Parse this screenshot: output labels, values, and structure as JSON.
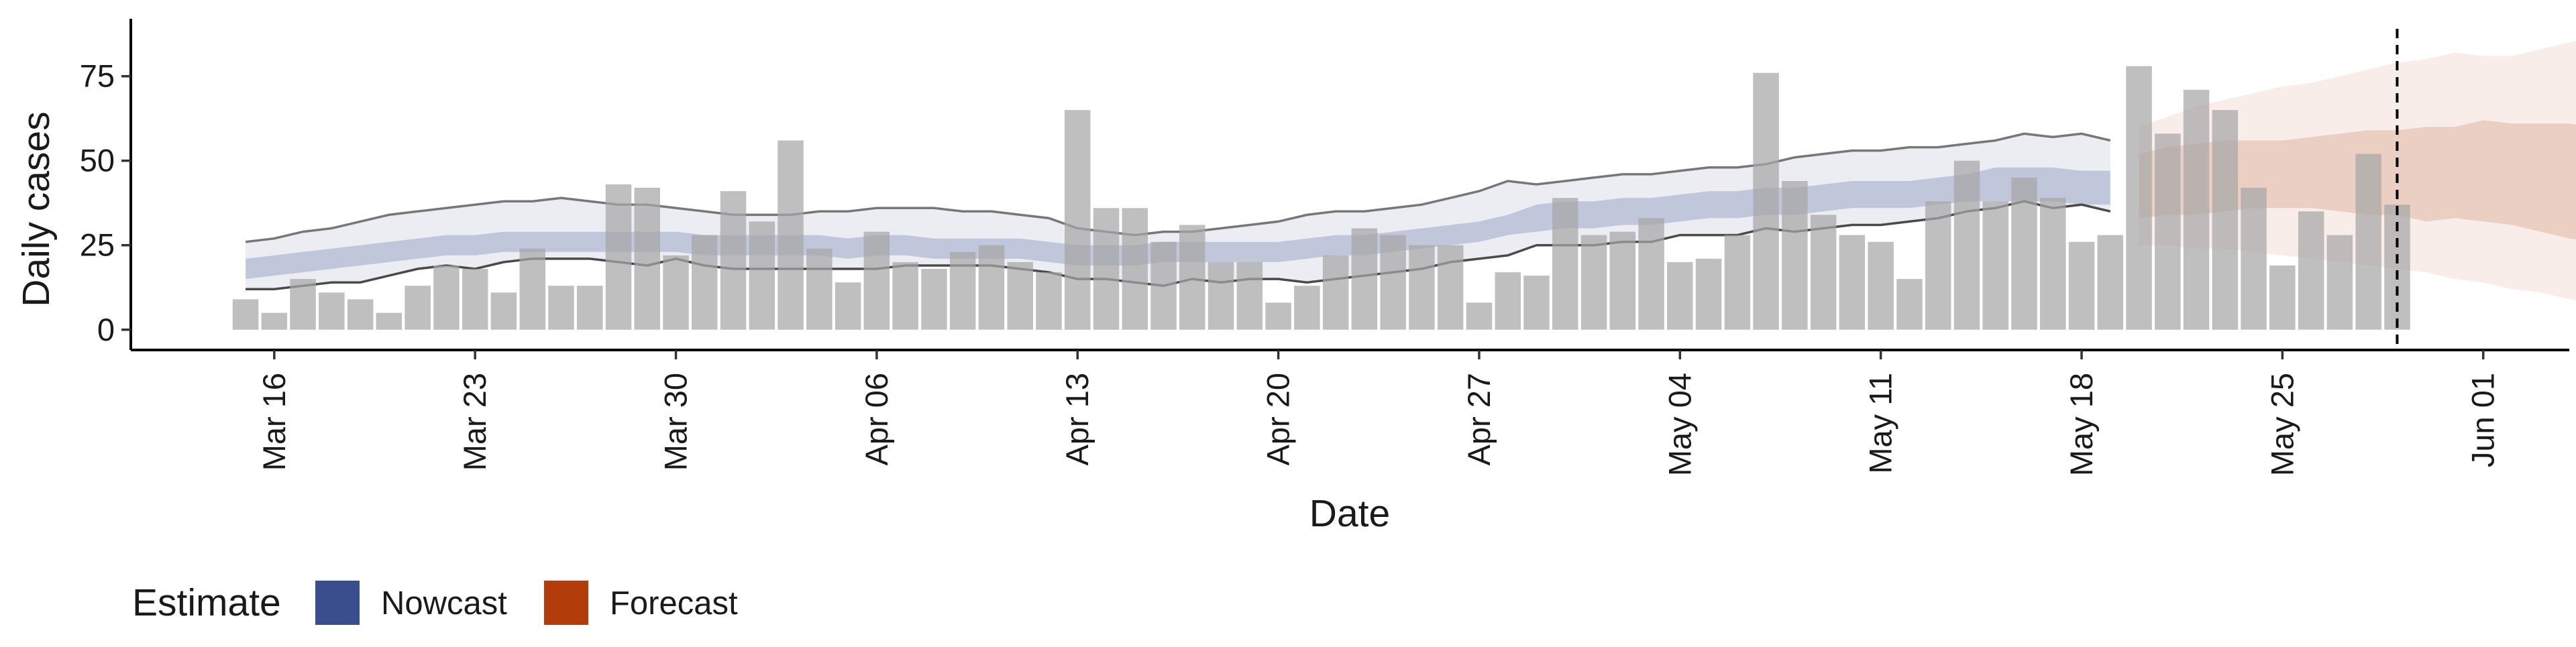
{
  "chart_data": {
    "type": "bar",
    "title": "",
    "xlabel": "Date",
    "ylabel": "Daily cases",
    "ylim": [
      -6,
      92
    ],
    "xlim": [
      "2020-03-11",
      "2020-06-04"
    ],
    "y_ticks": [
      0,
      25,
      50,
      75
    ],
    "x_ticks": [
      {
        "date": "2020-03-16",
        "label": "Mar 16"
      },
      {
        "date": "2020-03-23",
        "label": "Mar 23"
      },
      {
        "date": "2020-03-30",
        "label": "Mar 30"
      },
      {
        "date": "2020-04-06",
        "label": "Apr 06"
      },
      {
        "date": "2020-04-13",
        "label": "Apr 13"
      },
      {
        "date": "2020-04-20",
        "label": "Apr 20"
      },
      {
        "date": "2020-04-27",
        "label": "Apr 27"
      },
      {
        "date": "2020-05-04",
        "label": "May 04"
      },
      {
        "date": "2020-05-11",
        "label": "May 11"
      },
      {
        "date": "2020-05-18",
        "label": "May 18"
      },
      {
        "date": "2020-05-25",
        "label": "May 25"
      },
      {
        "date": "2020-06-01",
        "label": "Jun 01"
      }
    ],
    "grid": false,
    "reference_line": {
      "date": "2020-05-29",
      "style": "dashed"
    },
    "legend": {
      "title": "Estimate",
      "position": "bottom-left",
      "items": [
        {
          "label": "Nowcast",
          "color": "#3a4e8c"
        },
        {
          "label": "Forecast",
          "color": "#b33c0b"
        }
      ]
    },
    "colors": {
      "bars": "#a6a6a6",
      "nowcast": "#3a4e8c",
      "forecast": "#b33c0b",
      "outer_lines": "#555555"
    },
    "reported_cases": {
      "start_date": "2020-03-15",
      "values": [
        9,
        5,
        15,
        11,
        9,
        5,
        13,
        19,
        18,
        11,
        24,
        13,
        13,
        43,
        42,
        22,
        28,
        41,
        32,
        56,
        24,
        14,
        29,
        20,
        18,
        23,
        25,
        20,
        17,
        65,
        36,
        36,
        26,
        31,
        20,
        20,
        8,
        13,
        22,
        30,
        28,
        25,
        25,
        8,
        17,
        16,
        39,
        28,
        29,
        33,
        20,
        21,
        28,
        76,
        44,
        34,
        28,
        26,
        15,
        38,
        50,
        38,
        45,
        39,
        26,
        28,
        78,
        58,
        71,
        65,
        42,
        19,
        35,
        28,
        52,
        37
      ]
    },
    "nowcast": {
      "start_date": "2020-03-15",
      "median": [
        18,
        19,
        20,
        21,
        22,
        23,
        24,
        25,
        25,
        26,
        26,
        26,
        26,
        26,
        26,
        26,
        25,
        25,
        25,
        25,
        25,
        24,
        25,
        25,
        24,
        24,
        24,
        24,
        23,
        22,
        22,
        22,
        23,
        23,
        23,
        23,
        23,
        24,
        25,
        25,
        26,
        27,
        28,
        29,
        31,
        33,
        34,
        34,
        35,
        35,
        36,
        37,
        37,
        38,
        38,
        39,
        40,
        40,
        40,
        41,
        42,
        43,
        43,
        43,
        42,
        42
      ],
      "lower_50": [
        15,
        16,
        17,
        18,
        19,
        20,
        21,
        22,
        22,
        23,
        23,
        23,
        23,
        23,
        23,
        23,
        22,
        22,
        22,
        22,
        22,
        21,
        22,
        22,
        21,
        21,
        21,
        21,
        20,
        19,
        19,
        19,
        20,
        20,
        20,
        20,
        20,
        21,
        22,
        22,
        23,
        24,
        25,
        26,
        28,
        29,
        30,
        30,
        31,
        31,
        32,
        33,
        33,
        34,
        34,
        35,
        36,
        36,
        36,
        37,
        38,
        38,
        38,
        38,
        37,
        37
      ],
      "upper_50": [
        21,
        22,
        23,
        24,
        25,
        26,
        27,
        28,
        28,
        29,
        29,
        29,
        29,
        29,
        29,
        29,
        28,
        28,
        28,
        28,
        28,
        27,
        28,
        28,
        27,
        27,
        27,
        27,
        26,
        25,
        25,
        25,
        26,
        26,
        26,
        26,
        26,
        27,
        28,
        28,
        29,
        30,
        31,
        32,
        34,
        37,
        38,
        38,
        39,
        39,
        40,
        41,
        41,
        42,
        42,
        43,
        44,
        44,
        44,
        45,
        46,
        48,
        48,
        48,
        47,
        47
      ],
      "lower_90": [
        12,
        12,
        13,
        14,
        14,
        16,
        18,
        19,
        18,
        20,
        21,
        21,
        21,
        20,
        19,
        21,
        19,
        18,
        18,
        18,
        18,
        18,
        18,
        19,
        19,
        19,
        19,
        18,
        17,
        15,
        15,
        14,
        13,
        15,
        14,
        15,
        15,
        14,
        15,
        16,
        17,
        18,
        20,
        21,
        22,
        25,
        25,
        25,
        26,
        26,
        28,
        28,
        28,
        30,
        29,
        30,
        31,
        31,
        32,
        33,
        35,
        36,
        38,
        36,
        37,
        35
      ],
      "upper_90": [
        26,
        27,
        29,
        30,
        32,
        34,
        35,
        36,
        37,
        38,
        38,
        39,
        38,
        37,
        37,
        36,
        35,
        34,
        34,
        34,
        35,
        35,
        36,
        36,
        36,
        35,
        35,
        34,
        33,
        30,
        29,
        28,
        29,
        29,
        30,
        31,
        32,
        34,
        35,
        35,
        36,
        37,
        39,
        41,
        44,
        43,
        44,
        45,
        46,
        46,
        47,
        48,
        48,
        49,
        51,
        52,
        53,
        53,
        54,
        54,
        55,
        56,
        58,
        57,
        58,
        56
      ]
    },
    "forecast": {
      "start_date": "2020-05-20",
      "median": [
        43,
        44,
        45,
        46,
        47,
        48,
        49,
        50,
        49,
        49,
        48,
        50,
        49,
        49,
        47,
        46,
        46
      ],
      "lower_50": [
        33,
        34,
        34,
        35,
        36,
        36,
        36,
        35,
        34,
        34,
        32,
        33,
        32,
        31,
        29,
        27,
        26
      ],
      "upper_50": [
        52,
        54,
        55,
        56,
        56,
        56,
        57,
        58,
        59,
        59,
        60,
        60,
        62,
        61,
        61,
        61,
        60
      ],
      "lower_90": [
        25,
        25,
        24,
        24,
        23,
        22,
        21,
        20,
        19,
        18,
        17,
        15,
        14,
        12,
        11,
        9,
        8
      ],
      "upper_90": [
        60,
        63,
        66,
        68,
        70,
        72,
        73,
        75,
        77,
        79,
        80,
        82,
        81,
        81,
        83,
        85,
        87
      ]
    }
  }
}
